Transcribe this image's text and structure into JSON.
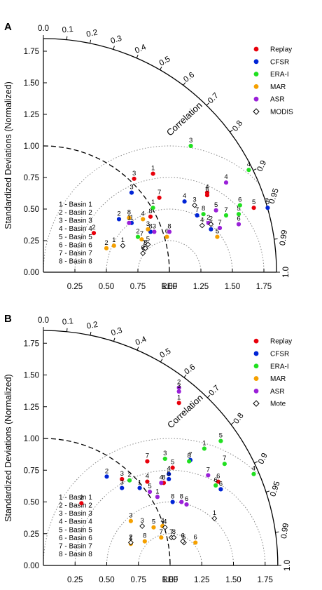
{
  "chart_data": [
    {
      "type": "scatter",
      "subtype": "taylor-diagram",
      "panel_label": "A",
      "ylabel": "Standardized Deviations (Normalized)",
      "correlation_label": "Correlation",
      "ref_label": "REF",
      "std_range": [
        0,
        1.85
      ],
      "x_ticks": [
        "0.25",
        "0.50",
        "0.75",
        "1.00",
        "1.25",
        "1.50",
        "1.75"
      ],
      "x_tick_values": [
        0.25,
        0.5,
        0.75,
        1.0,
        1.25,
        1.5,
        1.75
      ],
      "y_ticks": [
        "0.00",
        "0.25",
        "0.50",
        "0.75",
        "1.00",
        "1.25",
        "1.50",
        "1.75"
      ],
      "y_tick_values": [
        0,
        0.25,
        0.5,
        0.75,
        1.0,
        1.25,
        1.5,
        1.75
      ],
      "correlation_ticks": [
        "0.0",
        "0.1",
        "0.2",
        "0.3",
        "0.4",
        "0.5",
        "0.6",
        "0.7",
        "0.8",
        "0.9",
        "0.95",
        "0.99",
        "1.0"
      ],
      "correlation_tick_values": [
        0,
        0.1,
        0.2,
        0.3,
        0.4,
        0.5,
        0.6,
        0.7,
        0.8,
        0.9,
        0.95,
        0.99,
        1.0
      ],
      "rms_arcs": [
        0.25,
        0.5,
        0.75,
        1.0
      ],
      "basins": [
        "1 - Basin 1",
        "2 - Basin 2",
        "3 - Basin 3",
        "4 - Basin 4",
        "5 - Basin 5",
        "6 - Basin 6",
        "7 - Basin 7",
        "8 - Basin 8"
      ],
      "legend_position": "top-right",
      "series": [
        {
          "name": "Replay",
          "color": "#e8000b",
          "marker": "dot",
          "points": [
            {
              "id": "1",
              "x": 0.87,
              "y": 0.78
            },
            {
              "id": "2",
              "x": 0.4,
              "y": 0.31
            },
            {
              "id": "3",
              "x": 0.72,
              "y": 0.74
            },
            {
              "id": "4",
              "x": 1.3,
              "y": 0.63
            },
            {
              "id": "5",
              "x": 1.67,
              "y": 0.51
            },
            {
              "id": "6",
              "x": 1.3,
              "y": 0.61
            },
            {
              "id": "7",
              "x": 0.92,
              "y": 0.59
            },
            {
              "id": "8",
              "x": 0.85,
              "y": 0.44
            }
          ]
        },
        {
          "name": "CFSR",
          "color": "#0024d6",
          "marker": "dot",
          "points": [
            {
              "id": "1",
              "x": 0.7,
              "y": 0.39
            },
            {
              "id": "2",
              "x": 0.6,
              "y": 0.42
            },
            {
              "id": "3",
              "x": 0.7,
              "y": 0.63
            },
            {
              "id": "4",
              "x": 1.12,
              "y": 0.56
            },
            {
              "id": "5",
              "x": 1.78,
              "y": 0.51
            },
            {
              "id": "6",
              "x": 1.33,
              "y": 0.34
            },
            {
              "id": "7",
              "x": 1.22,
              "y": 0.45
            },
            {
              "id": "8",
              "x": 0.85,
              "y": 0.32
            }
          ]
        },
        {
          "name": "ERA-I",
          "color": "#20e020",
          "marker": "dot",
          "points": [
            {
              "id": "1",
              "x": 0.87,
              "y": 0.51
            },
            {
              "id": "2",
              "x": 0.75,
              "y": 0.28
            },
            {
              "id": "3",
              "x": 1.17,
              "y": 1.0
            },
            {
              "id": "4",
              "x": 1.63,
              "y": 0.81
            },
            {
              "id": "5",
              "x": 1.55,
              "y": 0.46
            },
            {
              "id": "6",
              "x": 1.56,
              "y": 0.53
            },
            {
              "id": "7",
              "x": 1.45,
              "y": 0.45
            },
            {
              "id": "8",
              "x": 1.27,
              "y": 0.46
            }
          ]
        },
        {
          "name": "MAR",
          "color": "#f5a000",
          "marker": "dot",
          "points": [
            {
              "id": "1",
              "x": 0.56,
              "y": 0.21
            },
            {
              "id": "2",
              "x": 0.5,
              "y": 0.19
            },
            {
              "id": "3",
              "x": 0.83,
              "y": 0.34
            },
            {
              "id": "4",
              "x": 0.79,
              "y": 0.42
            },
            {
              "id": "5",
              "x": 1.38,
              "y": 0.28
            },
            {
              "id": "6",
              "x": 0.98,
              "y": 0.28
            },
            {
              "id": "7",
              "x": 0.78,
              "y": 0.26
            },
            {
              "id": "8",
              "x": 0.68,
              "y": 0.43
            }
          ]
        },
        {
          "name": "ASR",
          "color": "#9a20d8",
          "marker": "dot",
          "points": [
            {
              "id": "1",
              "x": 0.68,
              "y": 0.39
            },
            {
              "id": "2",
              "x": 1.31,
              "y": 0.39
            },
            {
              "id": "3",
              "x": 0.88,
              "y": 0.32
            },
            {
              "id": "4",
              "x": 1.45,
              "y": 0.71
            },
            {
              "id": "5",
              "x": 1.37,
              "y": 0.49
            },
            {
              "id": "6",
              "x": 1.55,
              "y": 0.38
            },
            {
              "id": "7",
              "x": 1.4,
              "y": 0.35
            },
            {
              "id": "8",
              "x": 1.0,
              "y": 0.32
            }
          ]
        },
        {
          "name": "MODIS",
          "color": "#000000",
          "marker": "diamond",
          "points": [
            {
              "id": "1",
              "x": 0.63,
              "y": 0.21
            },
            {
              "id": "2",
              "x": 1.33,
              "y": 0.38
            },
            {
              "id": "3",
              "x": 1.2,
              "y": 0.53
            },
            {
              "id": "4",
              "x": 1.26,
              "y": 0.37
            },
            {
              "id": "5",
              "x": 0.83,
              "y": 0.22
            },
            {
              "id": "6",
              "x": 0.79,
              "y": 0.15
            },
            {
              "id": "7",
              "x": 0.8,
              "y": 0.19
            },
            {
              "id": "8",
              "x": 0.81,
              "y": 0.19
            }
          ]
        }
      ]
    },
    {
      "type": "scatter",
      "subtype": "taylor-diagram",
      "panel_label": "B",
      "ylabel": "Standardized Deviations (Normalized)",
      "correlation_label": "Correlation",
      "ref_label": "REF",
      "std_range": [
        0,
        1.85
      ],
      "x_ticks": [
        "0.25",
        "0.50",
        "0.75",
        "1.00",
        "1.25",
        "1.50",
        "1.75"
      ],
      "x_tick_values": [
        0.25,
        0.5,
        0.75,
        1.0,
        1.25,
        1.5,
        1.75
      ],
      "y_ticks": [
        "0.00",
        "0.25",
        "0.50",
        "0.75",
        "1.00",
        "1.25",
        "1.50",
        "1.75"
      ],
      "y_tick_values": [
        0,
        0.25,
        0.5,
        0.75,
        1.0,
        1.25,
        1.5,
        1.75
      ],
      "correlation_ticks": [
        "0.0",
        "0.1",
        "0.2",
        "0.3",
        "0.4",
        "0.5",
        "0.6",
        "0.7",
        "0.8",
        "0.9",
        "0.95",
        "0.99",
        "1.0"
      ],
      "correlation_tick_values": [
        0,
        0.1,
        0.2,
        0.3,
        0.4,
        0.5,
        0.6,
        0.7,
        0.8,
        0.9,
        0.95,
        0.99,
        1.0
      ],
      "rms_arcs": [
        0.25,
        0.5,
        0.75,
        1.0
      ],
      "basins": [
        "1 - Basin 1",
        "2 - Basin 2",
        "3 - Basin 3",
        "4 - Basin 4",
        "5 - Basin 5",
        "6 - Basin 6",
        "7 - Basin 7",
        "8 - Basin 8"
      ],
      "legend_position": "top-right",
      "series": [
        {
          "name": "Replay",
          "color": "#e8000b",
          "marker": "dot",
          "points": [
            {
              "id": "1",
              "x": 1.07,
              "y": 1.28
            },
            {
              "id": "2",
              "x": 0.3,
              "y": 0.49
            },
            {
              "id": "3",
              "x": 0.62,
              "y": 0.68
            },
            {
              "id": "4",
              "x": 0.82,
              "y": 0.66
            },
            {
              "id": "5",
              "x": 1.02,
              "y": 0.77
            },
            {
              "id": "6",
              "x": 1.38,
              "y": 0.66
            },
            {
              "id": "7",
              "x": 0.82,
              "y": 0.82
            },
            {
              "id": "8",
              "x": 0.95,
              "y": 0.65
            }
          ]
        },
        {
          "name": "CFSR",
          "color": "#0024d6",
          "marker": "dot",
          "points": [
            {
              "id": "1",
              "x": 0.76,
              "y": 0.61
            },
            {
              "id": "2",
              "x": 0.5,
              "y": 0.7
            },
            {
              "id": "3",
              "x": 0.62,
              "y": 0.61
            },
            {
              "id": "4",
              "x": 0.99,
              "y": 0.72
            },
            {
              "id": "5",
              "x": 0.99,
              "y": 0.68
            },
            {
              "id": "6",
              "x": 1.4,
              "y": 0.6
            },
            {
              "id": "7",
              "x": 1.16,
              "y": 0.83
            },
            {
              "id": "8",
              "x": 1.02,
              "y": 0.5
            }
          ]
        },
        {
          "name": "ERA-I",
          "color": "#20e020",
          "marker": "dot",
          "points": [
            {
              "id": "1",
              "x": 1.27,
              "y": 0.92
            },
            {
              "id": "2",
              "x": 0.68,
              "y": 0.67
            },
            {
              "id": "3",
              "x": 0.96,
              "y": 0.84
            },
            {
              "id": "4",
              "x": 1.66,
              "y": 0.72
            },
            {
              "id": "5",
              "x": 1.4,
              "y": 0.98
            },
            {
              "id": "6",
              "x": 1.36,
              "y": 0.63
            },
            {
              "id": "7",
              "x": 1.43,
              "y": 0.8
            },
            {
              "id": "8",
              "x": 1.15,
              "y": 0.82
            }
          ]
        },
        {
          "name": "MAR",
          "color": "#f5a000",
          "marker": "dot",
          "points": [
            {
              "id": "1",
              "x": 0.69,
              "y": 0.17
            },
            {
              "id": "2",
              "x": 0.69,
              "y": 0.18
            },
            {
              "id": "3",
              "x": 0.69,
              "y": 0.35
            },
            {
              "id": "4",
              "x": 0.94,
              "y": 0.31
            },
            {
              "id": "5",
              "x": 0.87,
              "y": 0.3
            },
            {
              "id": "6",
              "x": 1.2,
              "y": 0.18
            },
            {
              "id": "7",
              "x": 0.93,
              "y": 0.22
            },
            {
              "id": "8",
              "x": 0.8,
              "y": 0.19
            }
          ]
        },
        {
          "name": "ASR",
          "color": "#9a20d8",
          "marker": "dot",
          "points": [
            {
              "id": "1",
              "x": 0.9,
              "y": 0.54
            },
            {
              "id": "2",
              "x": 1.07,
              "y": 1.4
            },
            {
              "id": "3",
              "x": 1.07,
              "y": 1.37
            },
            {
              "id": "4",
              "x": 0.93,
              "y": 0.65
            },
            {
              "id": "5",
              "x": 0.84,
              "y": 0.58
            },
            {
              "id": "6",
              "x": 1.13,
              "y": 0.48
            },
            {
              "id": "7",
              "x": 1.3,
              "y": 0.71
            },
            {
              "id": "8",
              "x": 1.09,
              "y": 0.5
            }
          ]
        },
        {
          "name": "Mote",
          "color": "#000000",
          "marker": "diamond",
          "points": [
            {
              "id": "1",
              "x": 1.35,
              "y": 0.37
            },
            {
              "id": "2",
              "x": 0.69,
              "y": 0.18
            },
            {
              "id": "3",
              "x": 0.78,
              "y": 0.31
            },
            {
              "id": "4",
              "x": 0.96,
              "y": 0.3
            },
            {
              "id": "5",
              "x": 1.11,
              "y": 0.18
            },
            {
              "id": "6",
              "x": 1.1,
              "y": 0.19
            },
            {
              "id": "7",
              "x": 1.01,
              "y": 0.22
            },
            {
              "id": "8",
              "x": 1.03,
              "y": 0.22
            }
          ]
        }
      ]
    }
  ]
}
